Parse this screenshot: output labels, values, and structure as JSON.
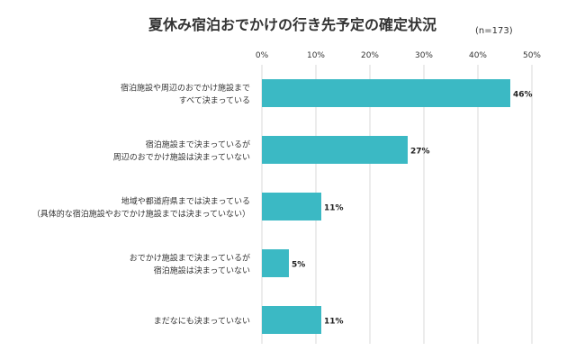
{
  "chart_data": {
    "type": "bar",
    "orientation": "horizontal",
    "title": "夏休み宿泊おでかけの行き先予定の確定状況",
    "note": "(n=173)",
    "categories": [
      [
        "宿泊施設や周辺のおでかけ施設まで",
        "すべて決まっている"
      ],
      [
        "宿泊施設まで決まっているが",
        "周辺のおでかけ施設は決まっていない"
      ],
      [
        "地域や都道府県までは決まっている",
        "（具体的な宿泊施設やおでかけ施設までは決まっていない）"
      ],
      [
        "おでかけ施設まで決まっているが",
        "宿泊施設は決まっていない"
      ],
      [
        "まだなにも決まっていない"
      ]
    ],
    "values": [
      46,
      27,
      11,
      5,
      11
    ],
    "value_labels": [
      "46%",
      "27%",
      "11%",
      "5%",
      "11%"
    ],
    "xlim": [
      0,
      50
    ],
    "xticks": [
      0,
      10,
      20,
      30,
      40,
      50
    ],
    "xtick_labels": [
      "0%",
      "10%",
      "20%",
      "30%",
      "40%",
      "50%"
    ],
    "xaxis_position": "top",
    "grid": true,
    "legend": "none",
    "colors": {
      "bar": "#3bb9c4",
      "grid": "#d9d9d9",
      "text": "#333333"
    }
  }
}
